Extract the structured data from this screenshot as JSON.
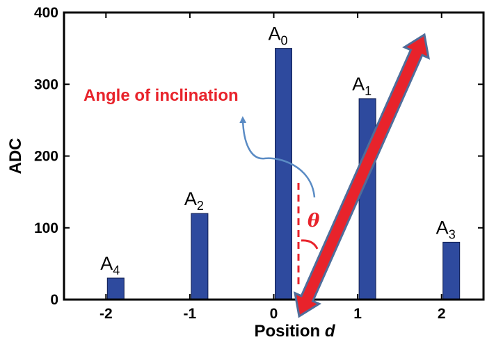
{
  "chart_data": {
    "type": "bar",
    "x": [
      -2,
      -1,
      0,
      1,
      2
    ],
    "values": [
      30,
      120,
      350,
      280,
      80
    ],
    "bar_labels": [
      {
        "main": "A",
        "sub": "4"
      },
      {
        "main": "A",
        "sub": "2"
      },
      {
        "main": "A",
        "sub": "0"
      },
      {
        "main": "A",
        "sub": "1"
      },
      {
        "main": "A",
        "sub": "3"
      }
    ],
    "xlabel": {
      "text": "Position ",
      "var": "d"
    },
    "ylabel": "ADC",
    "xlim": [
      -2.5,
      2.5
    ],
    "ylim": [
      0,
      400
    ],
    "xticks": [
      -2,
      -1,
      0,
      1,
      2
    ],
    "xtick_labels": [
      "-2",
      "-1",
      "0",
      "1",
      "2"
    ],
    "yticks": [
      0,
      100,
      200,
      300,
      400
    ],
    "ytick_labels": [
      "0",
      "100",
      "200",
      "300",
      "400"
    ],
    "bar_color": "#2e4a9e",
    "annotations": {
      "angle_text": "Angle of inclination",
      "theta_symbol": "θ",
      "color": "#e8232b",
      "curve_color": "#5a8bc4"
    },
    "grid": false
  }
}
